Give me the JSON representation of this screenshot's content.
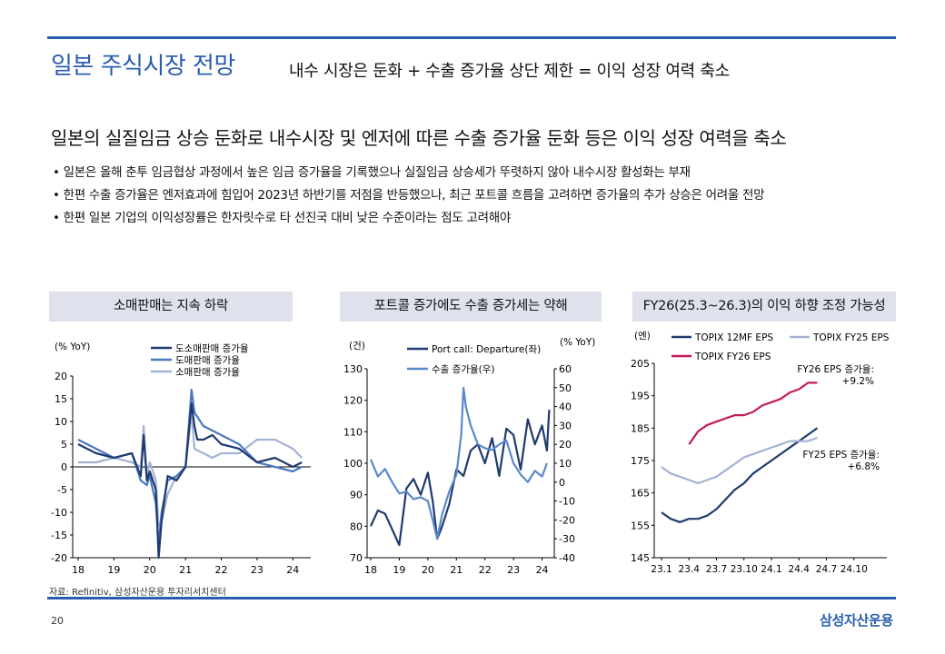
{
  "header": {
    "title": "일본 주식시장 전망",
    "subtitle": "내수 시장은 둔화 + 수출 증가율 상단 제한 = 이익 성장 여력 축소"
  },
  "headline": "일본의 실질임금 상승 둔화로 내수시장 및 엔저에 따른 수출 증가율 둔화 등은 이익 성장 여력을 축소",
  "bullets": [
    "일본은 올해 춘투 임금협상 과정에서 높은 임금 증가율을 기록했으나 실질임금 상승세가 뚜렷하지 않아 내수시장 활성화는 부재",
    "한편 수출 증가율은 엔저효과에 힘입어 2023년 하반기를 저점을 반등했으나, 최근 포트콜 흐름을 고려하면 증가율의 추가 상승은 어려울 전망",
    "한편 일본 기업의 이익성장률은 한자릿수로 타 선진국 대비 낮은 수준이라는 점도 고려해야"
  ],
  "panels": {
    "p1": "소매판매는 지속 하락",
    "p2": "포트콜 증가에도 수출 증가세는 약해",
    "p3": "FY26(25.3~26.3)의 이익 하향 조정 가능성"
  },
  "source": "자료: Refinitiv, 삼성자산운용 투자리서치센터",
  "page_number": "20",
  "brand": "삼성자산운용",
  "chart_data": [
    {
      "type": "line",
      "title": "소매판매는 지속 하락",
      "ylabel": "(% YoY)",
      "ylim": [
        -20,
        20
      ],
      "yticks": [
        20,
        15,
        10,
        5,
        0,
        -5,
        -10,
        -15,
        -20
      ],
      "x_range": [
        2018,
        2024.5
      ],
      "xticks": [
        "18",
        "19",
        "20",
        "21",
        "22",
        "23",
        "24"
      ],
      "xtick_values": [
        2018,
        2019,
        2020,
        2021,
        2022,
        2023,
        2024
      ],
      "series": [
        {
          "name": "도소매판매 증가율",
          "color": "#1f3a6e",
          "x": [
            2018,
            2018.5,
            2019,
            2019.5,
            2019.75,
            2019.83,
            2019.92,
            2020.0,
            2020.17,
            2020.25,
            2020.33,
            2020.5,
            2020.75,
            2021,
            2021.17,
            2021.25,
            2021.33,
            2021.5,
            2021.75,
            2022,
            2022.5,
            2023,
            2023.5,
            2024,
            2024.25
          ],
          "values": [
            5,
            3,
            2,
            3,
            -2,
            7,
            -3,
            -1,
            -5,
            -20,
            -12,
            -2,
            -3,
            0,
            14,
            9,
            6,
            6,
            7,
            5,
            4,
            1,
            2,
            0,
            1
          ]
        },
        {
          "name": "도매판매 증가율",
          "color": "#4a78c0",
          "x": [
            2018,
            2018.5,
            2019,
            2019.5,
            2019.75,
            2019.92,
            2020.0,
            2020.17,
            2020.25,
            2020.33,
            2020.5,
            2020.75,
            2021,
            2021.17,
            2021.25,
            2021.5,
            2021.75,
            2022,
            2022.5,
            2023,
            2023.5,
            2024,
            2024.25
          ],
          "values": [
            6,
            4,
            2,
            3,
            -3,
            -4,
            -2,
            -8,
            -17,
            -10,
            -3,
            -2,
            0,
            17,
            12,
            9,
            8,
            7,
            5,
            1,
            0,
            -1,
            0
          ]
        },
        {
          "name": "소매판매 증가율",
          "color": "#a4b3d1",
          "x": [
            2018,
            2018.5,
            2019,
            2019.5,
            2019.75,
            2019.83,
            2019.92,
            2020.0,
            2020.17,
            2020.25,
            2020.33,
            2020.5,
            2020.75,
            2021,
            2021.17,
            2021.25,
            2021.5,
            2021.75,
            2022,
            2022.5,
            2023,
            2023.5,
            2024,
            2024.25
          ],
          "values": [
            1,
            1,
            2,
            1,
            0,
            9,
            -2,
            1,
            -3,
            -13,
            -12,
            -6,
            -2,
            0,
            12,
            4,
            3,
            2,
            3,
            3,
            6,
            6,
            4,
            2
          ]
        }
      ]
    },
    {
      "type": "line",
      "title": "포트콜 증가에도 수출 증가세는 약해",
      "ylabel": "(건)",
      "y2label": "(% YoY)",
      "ylim": [
        70,
        130
      ],
      "yticks": [
        130,
        120,
        110,
        100,
        90,
        80,
        70
      ],
      "y2lim": [
        -40,
        60
      ],
      "y2ticks": [
        60,
        50,
        40,
        30,
        20,
        10,
        0,
        -10,
        -20,
        -30,
        -40
      ],
      "x_range": [
        2018,
        2024.3
      ],
      "xticks": [
        "18",
        "19",
        "20",
        "21",
        "22",
        "23",
        "24"
      ],
      "xtick_values": [
        2018,
        2019,
        2020,
        2021,
        2022,
        2023,
        2024
      ],
      "series": [
        {
          "name": "Port call: Departure(좌)",
          "axis": "left",
          "color": "#1f3a6e",
          "x": [
            2018,
            2018.25,
            2018.5,
            2018.75,
            2019,
            2019.25,
            2019.5,
            2019.75,
            2020,
            2020.17,
            2020.33,
            2020.5,
            2020.75,
            2021,
            2021.25,
            2021.5,
            2021.75,
            2022,
            2022.25,
            2022.5,
            2022.75,
            2023,
            2023.25,
            2023.5,
            2023.75,
            2024,
            2024.17,
            2024.25
          ],
          "values": [
            80,
            85,
            84,
            79,
            74,
            92,
            95,
            90,
            97,
            88,
            76,
            80,
            87,
            98,
            96,
            104,
            106,
            100,
            108,
            96,
            111,
            109,
            98,
            114,
            106,
            112,
            104,
            117
          ]
        },
        {
          "name": "수출 증가율(우)",
          "axis": "right",
          "color": "#5a88cc",
          "x": [
            2018,
            2018.25,
            2018.5,
            2018.75,
            2019,
            2019.25,
            2019.5,
            2019.75,
            2020,
            2020.17,
            2020.33,
            2020.5,
            2020.75,
            2021,
            2021.17,
            2021.25,
            2021.33,
            2021.5,
            2021.75,
            2022,
            2022.25,
            2022.5,
            2022.75,
            2023,
            2023.25,
            2023.5,
            2023.75,
            2024,
            2024.17
          ],
          "values": [
            12,
            3,
            7,
            0,
            -6,
            -5,
            -9,
            -8,
            -10,
            -20,
            -30,
            -17,
            -5,
            4,
            25,
            50,
            40,
            30,
            20,
            18,
            17,
            20,
            22,
            10,
            4,
            0,
            6,
            3,
            10
          ]
        }
      ]
    },
    {
      "type": "line",
      "title": "FY26(25.3~26.3)의 이익 하향 조정 가능성",
      "ylabel": "(엔)",
      "ylim": [
        145,
        205
      ],
      "yticks": [
        205,
        195,
        185,
        175,
        165,
        155,
        145
      ],
      "xticks": [
        "23.1",
        "23.4",
        "23.7",
        "23.10",
        "24.1",
        "24.4",
        "24.7",
        "24.10"
      ],
      "xtick_values": [
        0,
        3,
        6,
        9,
        12,
        15,
        18,
        21
      ],
      "x_range": [
        0,
        24
      ],
      "annotations": [
        "FY26 EPS 증가율: +9.2%",
        "FY25 EPS 증가율: +6.8%"
      ],
      "series": [
        {
          "name": "TOPIX 12MF EPS",
          "color": "#1f3a6e",
          "x": [
            0,
            1,
            2,
            3,
            4,
            5,
            6,
            7,
            8,
            9,
            10,
            11,
            12,
            13,
            14,
            15,
            16,
            17
          ],
          "values": [
            159,
            157,
            156,
            157,
            157,
            158,
            160,
            163,
            166,
            168,
            171,
            173,
            175,
            177,
            179,
            181,
            183,
            185
          ]
        },
        {
          "name": "TOPIX FY25 EPS",
          "color": "#a4b3d1",
          "x": [
            0,
            1,
            2,
            3,
            4,
            5,
            6,
            7,
            8,
            9,
            10,
            11,
            12,
            13,
            14,
            15,
            16,
            17
          ],
          "values": [
            173,
            171,
            170,
            169,
            168,
            169,
            170,
            172,
            174,
            176,
            177,
            178,
            179,
            180,
            181,
            181,
            181,
            182
          ]
        },
        {
          "name": "TOPIX FY26 EPS",
          "color": "#c2185b",
          "x": [
            3,
            4,
            5,
            6,
            7,
            8,
            9,
            10,
            11,
            12,
            13,
            14,
            15,
            16,
            17
          ],
          "values": [
            180,
            184,
            186,
            187,
            188,
            189,
            189,
            190,
            192,
            193,
            194,
            196,
            197,
            199,
            199
          ]
        }
      ]
    }
  ]
}
